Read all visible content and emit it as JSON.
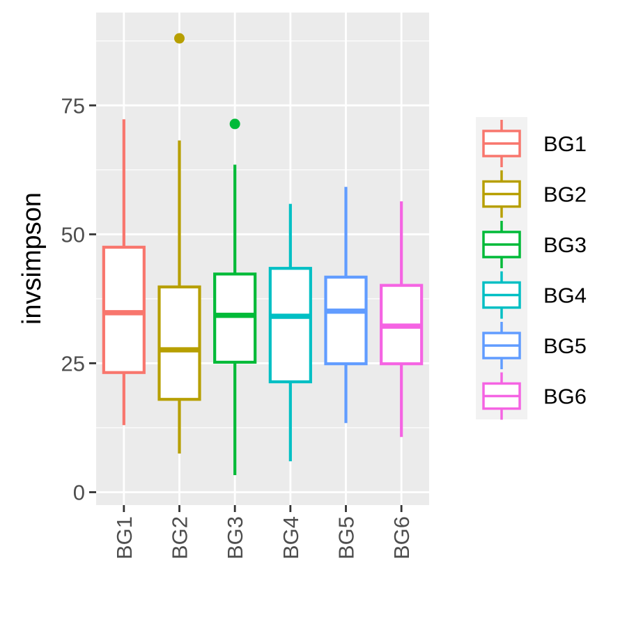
{
  "chart_data": {
    "type": "boxplot",
    "title": "",
    "xlabel": "",
    "ylabel": "invsimpson",
    "ylim": [
      -2.5,
      93
    ],
    "yticks": [
      0,
      25,
      50,
      75
    ],
    "grid": true,
    "legend_position": "right",
    "series": [
      {
        "name": "BG1",
        "color": "#F8766D",
        "whisker_low": 13,
        "q1": 23.2,
        "median": 34.8,
        "q3": 47.5,
        "whisker_high": 72.3,
        "outliers": []
      },
      {
        "name": "BG2",
        "color": "#B79F00",
        "whisker_low": 7.5,
        "q1": 18,
        "median": 27.6,
        "q3": 39.8,
        "whisker_high": 68.2,
        "outliers": [
          88
        ]
      },
      {
        "name": "BG3",
        "color": "#00BA38",
        "whisker_low": 3.3,
        "q1": 25.2,
        "median": 34.3,
        "q3": 42.3,
        "whisker_high": 63.5,
        "outliers": [
          71.4
        ]
      },
      {
        "name": "BG4",
        "color": "#00BFC4",
        "whisker_low": 6,
        "q1": 21.4,
        "median": 34.1,
        "q3": 43.4,
        "whisker_high": 55.9,
        "outliers": []
      },
      {
        "name": "BG5",
        "color": "#619CFF",
        "whisker_low": 13.4,
        "q1": 24.9,
        "median": 35.1,
        "q3": 41.7,
        "whisker_high": 59.2,
        "outliers": []
      },
      {
        "name": "BG6",
        "color": "#F564E3",
        "whisker_low": 10.7,
        "q1": 24.9,
        "median": 32.2,
        "q3": 40.1,
        "whisker_high": 56.4,
        "outliers": []
      }
    ]
  }
}
